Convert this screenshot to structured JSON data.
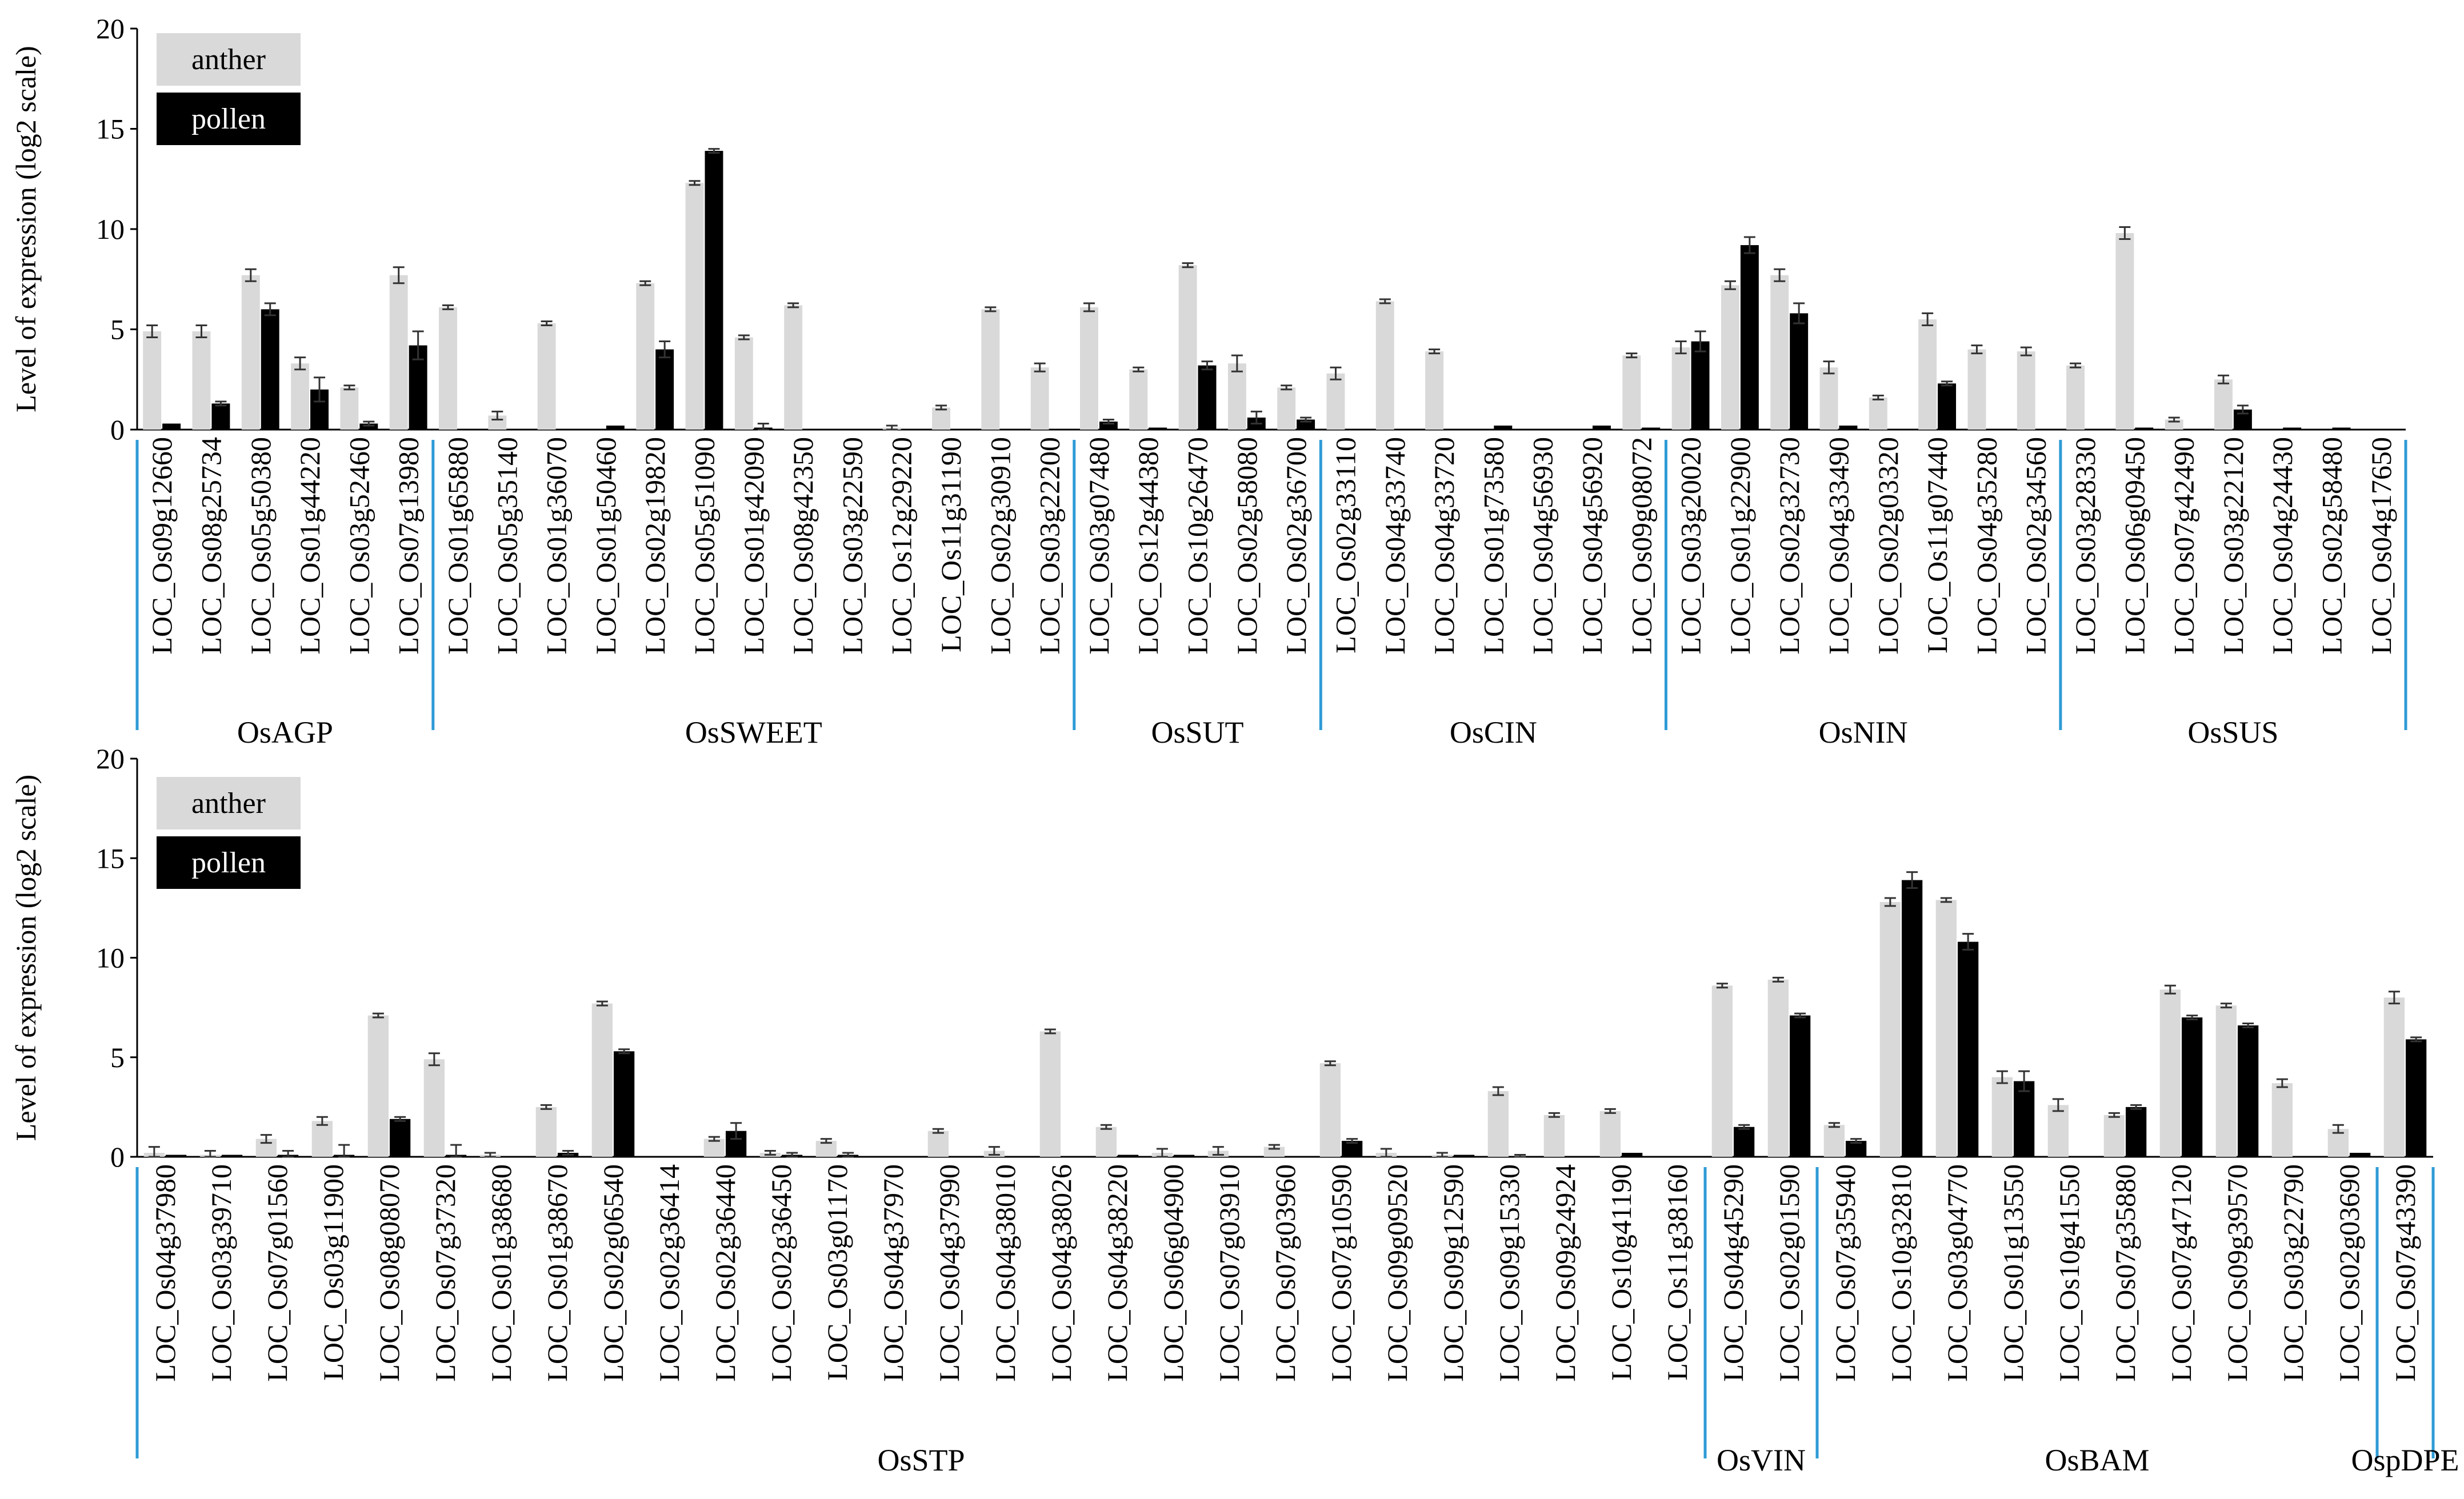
{
  "colors": {
    "anther": "#d9d9d9",
    "pollen": "#000000",
    "separator": "#2e9bd6"
  },
  "chart_data": [
    {
      "type": "bar",
      "ylabel": "Level of expression (log2 scale)",
      "ylim": [
        0,
        20
      ],
      "yticks": [
        0,
        5,
        10,
        15,
        20
      ],
      "legend": [
        "anther",
        "pollen"
      ],
      "series": [
        {
          "name": "anther",
          "values": [
            4.9,
            4.9,
            7.7,
            3.3,
            2.1,
            7.7,
            6.1,
            0.7,
            5.3,
            0,
            7.3,
            12.3,
            4.6,
            6.2,
            0,
            0.1,
            1.1,
            6.0,
            3.1,
            6.1,
            3.0,
            8.2,
            3.3,
            2.1,
            2.8,
            6.4,
            3.9,
            0,
            0,
            0,
            3.7,
            4.1,
            7.2,
            7.7,
            3.1,
            1.6,
            5.5,
            4.0,
            3.9,
            3.2,
            9.8,
            0.5,
            2.5,
            0,
            0,
            0
          ]
        },
        {
          "name": "pollen",
          "values": [
            0.3,
            1.3,
            6.0,
            2.0,
            0.3,
            4.2,
            0,
            0,
            0,
            0.2,
            4.0,
            13.9,
            0.1,
            0,
            0,
            0,
            0,
            0,
            0,
            0.4,
            0.1,
            3.2,
            0.6,
            0.5,
            0,
            0,
            0,
            0.2,
            0,
            0.2,
            0.1,
            4.4,
            9.2,
            5.8,
            0.2,
            0,
            2.3,
            0,
            0,
            0,
            0.1,
            0,
            1.0,
            0.1,
            0.1,
            0
          ]
        }
      ],
      "errors": {
        "anther": [
          0.3,
          0.3,
          0.3,
          0.3,
          0.1,
          0.4,
          0.1,
          0.2,
          0.1,
          0,
          0.1,
          0.1,
          0.1,
          0.1,
          0,
          0.1,
          0.1,
          0.1,
          0.2,
          0.2,
          0.1,
          0.1,
          0.4,
          0.1,
          0.3,
          0.1,
          0.1,
          0,
          0,
          0,
          0.1,
          0.3,
          0.2,
          0.3,
          0.3,
          0.1,
          0.3,
          0.2,
          0.2,
          0.1,
          0.3,
          0.1,
          0.2,
          0,
          0,
          0
        ],
        "pollen": [
          0,
          0.1,
          0.3,
          0.6,
          0.1,
          0.7,
          0,
          0,
          0,
          0,
          0.4,
          0.1,
          0.2,
          0,
          0,
          0,
          0,
          0,
          0,
          0.1,
          0,
          0.2,
          0.3,
          0.1,
          0,
          0,
          0,
          0,
          0,
          0,
          0,
          0.5,
          0.4,
          0.5,
          0,
          0,
          0.1,
          0,
          0,
          0,
          0,
          0,
          0.2,
          0,
          0,
          0
        ]
      },
      "categories": [
        "LOC_Os09g12660",
        "LOC_Os08g25734",
        "LOC_Os05g50380",
        "LOC_Os01g44220",
        "LOC_Os03g52460",
        "LOC_Os07g13980",
        "LOC_Os01g65880",
        "LOC_Os05g35140",
        "LOC_Os01g36070",
        "LOC_Os01g50460",
        "LOC_Os02g19820",
        "LOC_Os05g51090",
        "LOC_Os01g42090",
        "LOC_Os08g42350",
        "LOC_Os03g22590",
        "LOC_Os12g29220",
        "LOC_Os11g31190",
        "LOC_Os02g30910",
        "LOC_Os03g22200",
        "LOC_Os03g07480",
        "LOC_Os12g44380",
        "LOC_Os10g26470",
        "LOC_Os02g58080",
        "LOC_Os02g36700",
        "LOC_Os02g33110",
        "LOC_Os04g33740",
        "LOC_Os04g33720",
        "LOC_Os01g73580",
        "LOC_Os04g56930",
        "LOC_Os04g56920",
        "LOC_Os09g08072",
        "LOC_Os03g20020",
        "LOC_Os01g22900",
        "LOC_Os02g32730",
        "LOC_Os04g33490",
        "LOC_Os02g03320",
        "LOC_Os11g07440",
        "LOC_Os04g35280",
        "LOC_Os02g34560",
        "LOC_Os03g28330",
        "LOC_Os06g09450",
        "LOC_Os07g42490",
        "LOC_Os03g22120",
        "LOC_Os04g24430",
        "LOC_Os02g58480",
        "LOC_Os04g17650"
      ],
      "groups": [
        {
          "name": "OsAGP",
          "count": 6
        },
        {
          "name": "OsSWEET",
          "count": 13
        },
        {
          "name": "OsSUT",
          "count": 5
        },
        {
          "name": "OsCIN",
          "count": 7
        },
        {
          "name": "OsNIN",
          "count": 8
        },
        {
          "name": "OsSUS",
          "count": 7
        }
      ]
    },
    {
      "type": "bar",
      "ylabel": "Level of expression (log2 scale)",
      "ylim": [
        0,
        20
      ],
      "yticks": [
        0,
        5,
        10,
        15,
        20
      ],
      "legend": [
        "anther",
        "pollen"
      ],
      "series": [
        {
          "name": "anther",
          "values": [
            0.2,
            0.1,
            0.9,
            1.8,
            7.1,
            4.9,
            0.1,
            2.5,
            7.7,
            0,
            0.9,
            0.2,
            0.8,
            0,
            1.3,
            0.3,
            6.3,
            1.5,
            0.2,
            0.3,
            0.5,
            4.7,
            0.2,
            0.1,
            3.3,
            2.1,
            2.3,
            0,
            8.6,
            8.9,
            1.6,
            12.8,
            12.9,
            4.0,
            2.6,
            2.1,
            8.4,
            7.6,
            3.7,
            1.4,
            8.0
          ]
        },
        {
          "name": "pollen",
          "values": [
            0.1,
            0.1,
            0.1,
            0.1,
            1.9,
            0.1,
            0,
            0.2,
            5.3,
            0,
            1.3,
            0.1,
            0.1,
            0,
            0,
            0,
            0,
            0.1,
            0.1,
            0,
            0,
            0.8,
            0,
            0.1,
            0,
            0,
            0.2,
            0,
            1.5,
            7.1,
            0.8,
            13.9,
            10.8,
            3.8,
            0,
            2.5,
            7.0,
            6.6,
            0,
            0.2,
            5.9
          ]
        }
      ],
      "errors": {
        "anther": [
          0.3,
          0.2,
          0.2,
          0.2,
          0.1,
          0.3,
          0.1,
          0.1,
          0.1,
          0,
          0.1,
          0.1,
          0.1,
          0,
          0.1,
          0.2,
          0.1,
          0.1,
          0.2,
          0.2,
          0.1,
          0.1,
          0.2,
          0.1,
          0.2,
          0.1,
          0.1,
          0,
          0.1,
          0.1,
          0.1,
          0.2,
          0.1,
          0.3,
          0.3,
          0.1,
          0.2,
          0.1,
          0.2,
          0.2,
          0.3
        ],
        "pollen": [
          0,
          0,
          0.2,
          0.5,
          0.1,
          0.5,
          0,
          0.1,
          0.1,
          0,
          0.4,
          0.1,
          0.1,
          0,
          0,
          0,
          0,
          0,
          0,
          0,
          0,
          0.1,
          0,
          0,
          0.1,
          0,
          0,
          0,
          0.1,
          0.1,
          0.1,
          0.4,
          0.4,
          0.5,
          0,
          0.1,
          0.1,
          0.1,
          0,
          0,
          0.1
        ]
      },
      "categories": [
        "LOC_Os04g37980",
        "LOC_Os03g39710",
        "LOC_Os07g01560",
        "LOC_Os03g11900",
        "LOC_Os08g08070",
        "LOC_Os07g37320",
        "LOC_Os01g38680",
        "LOC_Os01g38670",
        "LOC_Os02g06540",
        "LOC_Os02g36414",
        "LOC_Os02g36440",
        "LOC_Os02g36450",
        "LOC_Os03g01170",
        "LOC_Os04g37970",
        "LOC_Os04g37990",
        "LOC_Os04g38010",
        "LOC_Os04g38026",
        "LOC_Os04g38220",
        "LOC_Os06g04900",
        "LOC_Os07g03910",
        "LOC_Os07g03960",
        "LOC_Os07g10590",
        "LOC_Os09g09520",
        "LOC_Os09g12590",
        "LOC_Os09g15330",
        "LOC_Os09g24924",
        "LOC_Os10g41190",
        "LOC_Os11g38160",
        "LOC_Os04g45290",
        "LOC_Os02g01590",
        "LOC_Os07g35940",
        "LOC_Os10g32810",
        "LOC_Os03g04770",
        "LOC_Os01g13550",
        "LOC_Os10g41550",
        "LOC_Os07g35880",
        "LOC_Os07g47120",
        "LOC_Os09g39570",
        "LOC_Os03g22790",
        "LOC_Os02g03690",
        "LOC_Os07g43390"
      ],
      "groups": [
        {
          "name": "OsSTP",
          "count": 28
        },
        {
          "name": "OsVIN",
          "count": 2
        },
        {
          "name": "OsBAM",
          "count": 10
        },
        {
          "name": "OspDPE",
          "count": 1
        }
      ]
    }
  ]
}
